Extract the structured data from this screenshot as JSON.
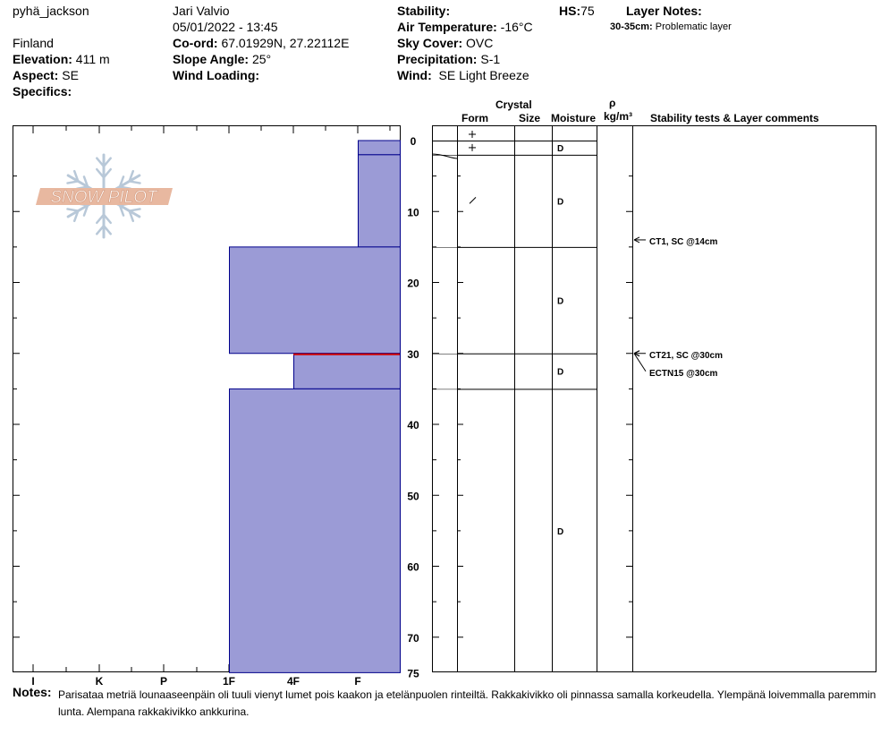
{
  "header": {
    "observer_handle": "pyhä_jackson",
    "observer_name": "Jari Valvio",
    "datetime": "05/01/2022 - 13:45",
    "country": "Finland",
    "coord_label": "Co-ord:",
    "coord_value": "67.01929N, 27.22112E",
    "elevation_label": "Elevation:",
    "elevation_value": "411 m",
    "slope_label": "Slope Angle:",
    "slope_value": "25°",
    "aspect_label": "Aspect:",
    "aspect_value": "SE",
    "wind_loading_label": "Wind Loading:",
    "specifics_label": "Specifics:",
    "stability_label": "Stability:",
    "air_temp_label": "Air Temperature:",
    "air_temp_value": "-16°C",
    "sky_label": "Sky Cover:",
    "sky_value": "OVC",
    "precip_label": "Precipitation:",
    "precip_value": "S-1",
    "wind_label": "Wind:",
    "wind_value": "SE Light Breeze",
    "hs_label": "HS:",
    "hs_value": "75",
    "layer_notes_label": "Layer Notes:",
    "layer_note_range": "30-35cm:",
    "layer_note_text": "Problematic layer"
  },
  "logo_text": "SNOW PILOT",
  "columns": {
    "crystal": "Crystal",
    "form": "Form",
    "size": "Size",
    "moisture": "Moisture",
    "rho": "ρ",
    "density_unit": "kg/m³",
    "comments": "Stability tests & Layer comments"
  },
  "hardness_axis": [
    "I",
    "K",
    "P",
    "1F",
    "4F",
    "F"
  ],
  "depth_ticks": [
    "0",
    "10",
    "20",
    "30",
    "40",
    "50",
    "60",
    "70",
    "75"
  ],
  "chart_data": {
    "type": "snow-profile",
    "depth_range_cm": [
      0,
      75
    ],
    "hardness_scale": [
      "F",
      "4F",
      "1F",
      "P",
      "K",
      "I"
    ],
    "layers": [
      {
        "top": 0,
        "bottom": 2,
        "hardness": "F",
        "form": "+",
        "moisture": "D"
      },
      {
        "top": 2,
        "bottom": 15,
        "hardness": "F",
        "form": "/",
        "moisture": "D"
      },
      {
        "top": 15,
        "bottom": 30,
        "hardness": "1F",
        "form": "",
        "moisture": "D"
      },
      {
        "top": 30,
        "bottom": 35,
        "hardness": "4F",
        "form": "",
        "moisture": "D"
      },
      {
        "top": 35,
        "bottom": 75,
        "hardness": "1F",
        "form": "",
        "moisture": "D"
      }
    ],
    "extra_form_symbol": {
      "depth": 0,
      "symbol": "+"
    },
    "problem_layer_depth_cm": 30,
    "tests": [
      {
        "label": "CT1, SC @14cm",
        "depth": 14
      },
      {
        "label": "CT21, SC @30cm",
        "depth": 30
      },
      {
        "label": "ECTN15 @30cm",
        "depth": 30
      }
    ]
  },
  "notes": {
    "label": "Notes:",
    "text": "Parisataa metriä lounaaseenpäin oli tuuli vienyt lumet pois kaakon ja etelänpuolen rinteiltä. Rakkakivikko oli pinnassa samalla korkeudella. Ylempänä loivemmalla paremmin lunta. Alempana rakkakivikko ankkurina."
  },
  "colors": {
    "layer_fill": "#9b9bd6",
    "layer_stroke": "#00008b",
    "problem_line": "#cc0000",
    "logo_orange": "#e8b8a0",
    "logo_blue": "#b8c8d8"
  }
}
